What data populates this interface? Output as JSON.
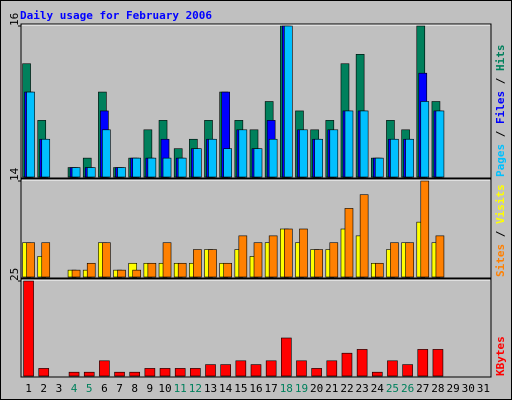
{
  "chart_data": [
    {
      "type": "bar",
      "title": "Daily usage for February 2006",
      "legend_separator": " / ",
      "ylim": [
        0,
        16
      ],
      "yticks": [
        16
      ],
      "series": [
        {
          "name": "Hits",
          "color": "#00805c",
          "values": [
            12,
            6,
            0,
            1,
            2,
            9,
            1,
            2,
            5,
            6,
            3,
            4,
            6,
            9,
            6,
            5,
            8,
            16,
            7,
            5,
            6,
            12,
            13,
            2,
            6,
            5,
            16,
            8,
            0,
            0,
            0
          ]
        },
        {
          "name": "Files",
          "color": "#0000ff",
          "values": [
            9,
            4,
            0,
            1,
            1,
            7,
            1,
            2,
            2,
            4,
            2,
            3,
            4,
            9,
            5,
            3,
            6,
            16,
            5,
            4,
            5,
            7,
            7,
            2,
            4,
            4,
            11,
            7,
            0,
            0,
            0
          ]
        },
        {
          "name": "Pages",
          "color": "#00c0ff",
          "values": [
            9,
            4,
            0,
            1,
            1,
            5,
            1,
            2,
            2,
            2,
            2,
            3,
            4,
            3,
            5,
            3,
            4,
            16,
            5,
            4,
            5,
            7,
            7,
            2,
            4,
            4,
            8,
            7,
            0,
            0,
            0
          ]
        }
      ]
    },
    {
      "type": "bar",
      "legend_separator": " / ",
      "ylim": [
        0,
        14
      ],
      "yticks": [
        14
      ],
      "series": [
        {
          "name": "Visits",
          "color": "#ffff00",
          "values": [
            5,
            3,
            0,
            1,
            1,
            5,
            1,
            2,
            2,
            2,
            2,
            2,
            4,
            2,
            4,
            3,
            5,
            7,
            5,
            4,
            4,
            7,
            6,
            2,
            4,
            5,
            8,
            5,
            0,
            0,
            0
          ]
        },
        {
          "name": "Sites",
          "color": "#ff8000",
          "values": [
            5,
            5,
            0,
            1,
            2,
            5,
            1,
            1,
            2,
            5,
            2,
            4,
            4,
            2,
            6,
            5,
            6,
            7,
            7,
            4,
            5,
            10,
            12,
            2,
            5,
            5,
            14,
            6,
            0,
            0,
            0
          ]
        }
      ]
    },
    {
      "type": "bar",
      "ylim": [
        0,
        25
      ],
      "yticks": [
        25
      ],
      "categories": [
        "1",
        "2",
        "3",
        "4",
        "5",
        "6",
        "7",
        "8",
        "9",
        "10",
        "11",
        "12",
        "13",
        "14",
        "15",
        "16",
        "17",
        "18",
        "19",
        "20",
        "21",
        "22",
        "23",
        "24",
        "25",
        "26",
        "27",
        "28",
        "29",
        "30",
        "31"
      ],
      "weekend_color": "#00805c",
      "weekend_categories": [
        "4",
        "5",
        "11",
        "12",
        "18",
        "19",
        "25",
        "26"
      ],
      "series": [
        {
          "name": "KBytes",
          "color": "#ff0000",
          "values": [
            25,
            2,
            0,
            1,
            1,
            4,
            1,
            1,
            2,
            2,
            2,
            2,
            3,
            3,
            4,
            3,
            4,
            10,
            4,
            2,
            4,
            6,
            7,
            1,
            4,
            3,
            7,
            7,
            0,
            0,
            0
          ]
        }
      ]
    }
  ]
}
